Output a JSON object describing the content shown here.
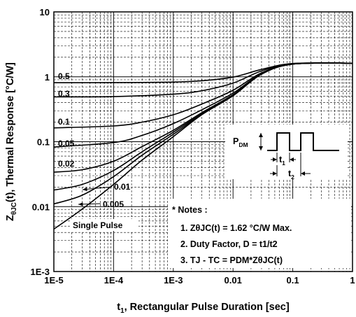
{
  "chart_data": {
    "type": "line",
    "xscale": "log",
    "yscale": "log",
    "xlim": [
      1e-05,
      1
    ],
    "ylim": [
      0.001,
      10
    ],
    "xlabel": {
      "main": "t",
      "sub": "1",
      "rest": ", Rectangular Pulse Duration [sec]"
    },
    "ylabel": {
      "main": "Z",
      "sub": "θJC",
      "rest": "(t), Thermal Response [°C/W]"
    },
    "x_ticks": [
      {
        "value": 1e-05,
        "label": "1E-5"
      },
      {
        "value": 0.0001,
        "label": "1E-4"
      },
      {
        "value": 0.001,
        "label": "1E-3"
      },
      {
        "value": 0.01,
        "label": "0.01"
      },
      {
        "value": 0.1,
        "label": "0.1"
      },
      {
        "value": 1,
        "label": "1"
      }
    ],
    "y_ticks": [
      {
        "value": 10,
        "label": "10"
      },
      {
        "value": 1,
        "label": "1"
      },
      {
        "value": 0.1,
        "label": "0.1"
      },
      {
        "value": 0.01,
        "label": "0.01"
      },
      {
        "value": 0.001,
        "label": "1E-3"
      }
    ],
    "grid": true,
    "series": [
      {
        "name": "0.5",
        "x": [
          1e-05,
          0.0001,
          0.001,
          0.003,
          0.01,
          0.03,
          0.1,
          1
        ],
        "y": [
          0.81,
          0.812,
          0.83,
          0.87,
          0.99,
          1.3,
          1.6,
          1.62
        ]
      },
      {
        "name": "0.3",
        "x": [
          1e-05,
          0.0001,
          0.001,
          0.003,
          0.01,
          0.03,
          0.1,
          1
        ],
        "y": [
          0.49,
          0.495,
          0.54,
          0.61,
          0.8,
          1.23,
          1.6,
          1.62
        ]
      },
      {
        "name": "0.1",
        "x": [
          1e-05,
          0.0001,
          0.0003,
          0.001,
          0.003,
          0.01,
          0.03,
          0.1,
          1
        ],
        "y": [
          0.163,
          0.175,
          0.2,
          0.26,
          0.38,
          0.62,
          1.15,
          1.58,
          1.62
        ]
      },
      {
        "name": "0.05",
        "x": [
          1e-05,
          0.0001,
          0.0003,
          0.001,
          0.003,
          0.01,
          0.03,
          0.1,
          1
        ],
        "y": [
          0.083,
          0.097,
          0.125,
          0.19,
          0.31,
          0.56,
          1.12,
          1.57,
          1.62
        ]
      },
      {
        "name": "0.02",
        "x": [
          1e-05,
          3e-05,
          0.0001,
          0.0003,
          0.001,
          0.003,
          0.01,
          0.03,
          0.1,
          1
        ],
        "y": [
          0.034,
          0.037,
          0.05,
          0.084,
          0.15,
          0.28,
          0.53,
          1.1,
          1.57,
          1.62
        ]
      },
      {
        "name": "0.01",
        "x": [
          1e-05,
          3e-05,
          0.0001,
          0.0003,
          0.001,
          0.003,
          0.01,
          0.03,
          0.1,
          1
        ],
        "y": [
          0.018,
          0.022,
          0.036,
          0.07,
          0.14,
          0.27,
          0.52,
          1.1,
          1.57,
          1.62
        ]
      },
      {
        "name": "0.005",
        "x": [
          1e-05,
          3e-05,
          0.0001,
          0.0003,
          0.001,
          0.003,
          0.01,
          0.03,
          0.1,
          1
        ],
        "y": [
          0.011,
          0.015,
          0.029,
          0.062,
          0.13,
          0.265,
          0.515,
          1.1,
          1.57,
          1.62
        ]
      },
      {
        "name": "Single Pulse",
        "x": [
          1e-05,
          3e-05,
          0.0001,
          0.0003,
          0.001,
          0.003,
          0.01,
          0.03,
          0.1,
          1
        ],
        "y": [
          0.0045,
          0.0092,
          0.022,
          0.052,
          0.12,
          0.26,
          0.51,
          1.1,
          1.57,
          1.62
        ]
      }
    ],
    "curve_labels": [
      {
        "series": "0.5",
        "text": "0.5"
      },
      {
        "series": "0.3",
        "text": "0.3"
      },
      {
        "series": "0.1",
        "text": "0.1"
      },
      {
        "series": "0.05",
        "text": "0.05"
      },
      {
        "series": "0.02",
        "text": "0.02"
      },
      {
        "series": "0.01",
        "text": "0.01"
      },
      {
        "series": "0.005",
        "text": "0.005"
      },
      {
        "series": "Single Pulse",
        "text": "Single Pulse"
      }
    ],
    "inset": {
      "pdm": {
        "main": "P",
        "sub": "DM"
      },
      "t1": {
        "main": "t",
        "sub": "1"
      },
      "t2": {
        "main": "t",
        "sub": "2"
      }
    },
    "notes": {
      "title": "* Notes :",
      "lines": [
        "1. ZθJC(t) = 1.62 °C/W Max.",
        "2. Duty Factor, D = t1/t2",
        "3. TJ - TC = PDM*ZθJC(t)"
      ]
    }
  }
}
